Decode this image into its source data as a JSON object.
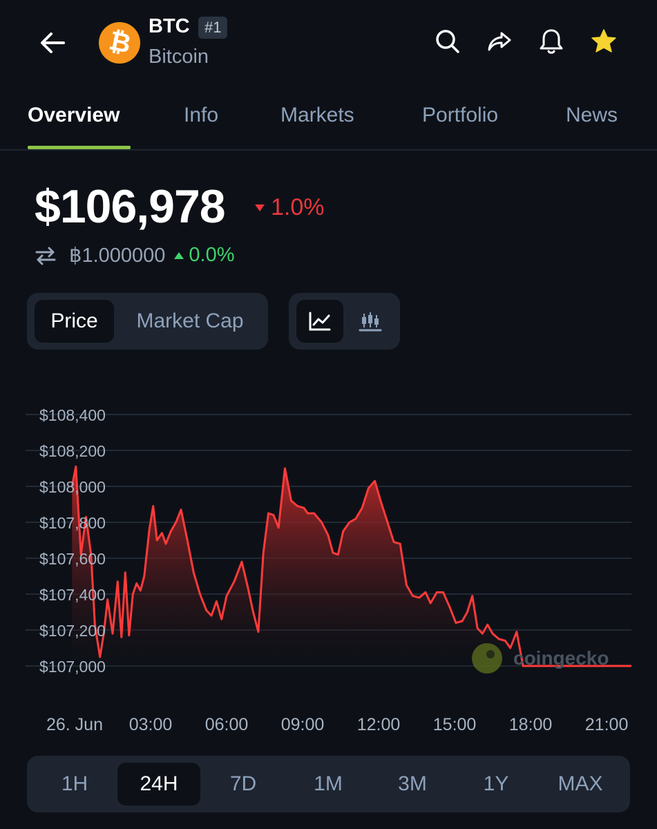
{
  "header": {
    "symbol": "BTC",
    "rank": "#1",
    "name": "Bitcoin",
    "logo_glyph": "₿",
    "icons": [
      "back-arrow-icon",
      "search-icon",
      "share-icon",
      "bell-icon",
      "star-icon"
    ]
  },
  "tabs": [
    {
      "label": "Overview",
      "active": true
    },
    {
      "label": "Info",
      "active": false
    },
    {
      "label": "Markets",
      "active": false
    },
    {
      "label": "Portfolio",
      "active": false
    },
    {
      "label": "News",
      "active": false
    }
  ],
  "price": {
    "value": "$106,978",
    "change_24h": "1.0%",
    "change_direction": "down",
    "btc_value": "฿1.000000",
    "btc_change": "0.0%",
    "btc_change_direction": "up"
  },
  "toggles": {
    "metric_options": [
      "Price",
      "Market Cap"
    ],
    "selected_metric": "Price",
    "chart_types": [
      "line-chart-icon",
      "candlestick-icon"
    ],
    "selected_chart_type": "line-chart-icon"
  },
  "watermark": "coingecko",
  "time_ranges": [
    "1H",
    "24H",
    "7D",
    "1M",
    "3M",
    "1Y",
    "MAX"
  ],
  "selected_range": "24H",
  "colors": {
    "background": "#0d1117",
    "accent_green": "#8dc647",
    "down_red": "#e8373e",
    "up_green": "#3fd36b",
    "line_red": "#ff3b3b",
    "star_yellow": "#f5d330",
    "btc_orange": "#f7931a"
  },
  "chart_data": {
    "type": "area",
    "title": "",
    "xlabel": "",
    "ylabel": "",
    "x_tick_labels": [
      "26. Jun",
      "03:00",
      "06:00",
      "09:00",
      "12:00",
      "15:00",
      "18:00",
      "21:00"
    ],
    "x_tick_hours": [
      0,
      3,
      6,
      9,
      12,
      15,
      18,
      21
    ],
    "y_tick_labels": [
      "$108,400",
      "$108,200",
      "$108,000",
      "$107,800",
      "$107,600",
      "$107,400",
      "$107,200",
      "$107,000"
    ],
    "y_ticks": [
      108400,
      108200,
      108000,
      107800,
      107600,
      107400,
      107200,
      107000
    ],
    "ylim": [
      107000,
      108400
    ],
    "grid": true,
    "series": [
      {
        "x_hours": [
          -0.1,
          0.05,
          0.25,
          0.45,
          0.65,
          0.8,
          1.0,
          1.15,
          1.3,
          1.5,
          1.7,
          1.85,
          2.0,
          2.15,
          2.3,
          2.45,
          2.6,
          2.75,
          2.95,
          3.1,
          3.25,
          3.45,
          3.6,
          3.8,
          4.0,
          4.2,
          4.45,
          4.7,
          4.95,
          5.2,
          5.4,
          5.6,
          5.8,
          6.0,
          6.3,
          6.6,
          6.85,
          7.05,
          7.25,
          7.45,
          7.65,
          7.85,
          8.05,
          8.3,
          8.55,
          8.8,
          9.05,
          9.2,
          9.45,
          9.75,
          10.0,
          10.2,
          10.4,
          10.6,
          10.85,
          11.1,
          11.35,
          11.6,
          11.85,
          12.1,
          12.35,
          12.6,
          12.85,
          13.1,
          13.35,
          13.6,
          13.85,
          14.05,
          14.3,
          14.55,
          14.8,
          15.05,
          15.3,
          15.5,
          15.7,
          15.9,
          16.1,
          16.3,
          16.5,
          16.75,
          17.0,
          17.2,
          17.45,
          17.7,
          17.95,
          18.2,
          18.45,
          18.7,
          18.95,
          19.2,
          19.45,
          19.7,
          19.95,
          20.2,
          20.45,
          20.7,
          20.95,
          21.2,
          21.45,
          21.65,
          21.8,
          21.95,
          22.05
        ],
        "y": [
          108000,
          108110,
          107620,
          107830,
          107620,
          107230,
          107050,
          107180,
          107370,
          107180,
          107470,
          107160,
          107520,
          107170,
          107400,
          107460,
          107420,
          107500,
          107760,
          107890,
          107700,
          107740,
          107680,
          107750,
          107800,
          107870,
          107700,
          107520,
          107400,
          107310,
          107280,
          107360,
          107260,
          107390,
          107470,
          107580,
          107430,
          107300,
          107190,
          107630,
          107850,
          107840,
          107770,
          108100,
          107920,
          107890,
          107880,
          107850,
          107850,
          107800,
          107730,
          107630,
          107620,
          107750,
          107800,
          107820,
          107880,
          107990,
          108030,
          107910,
          107800,
          107690,
          107680,
          107450,
          107390,
          107380,
          107410,
          107350,
          107410,
          107410,
          107330,
          107240,
          107250,
          107300,
          107390,
          107210,
          107180,
          107230,
          107180,
          107150,
          107140,
          107100,
          107190,
          107000,
          107000,
          107000,
          107000,
          107000,
          107000,
          107000,
          107000,
          107000,
          107000,
          107000,
          107000,
          107000,
          107000,
          107000,
          107000,
          107000,
          107000,
          107000,
          107000
        ]
      }
    ]
  }
}
